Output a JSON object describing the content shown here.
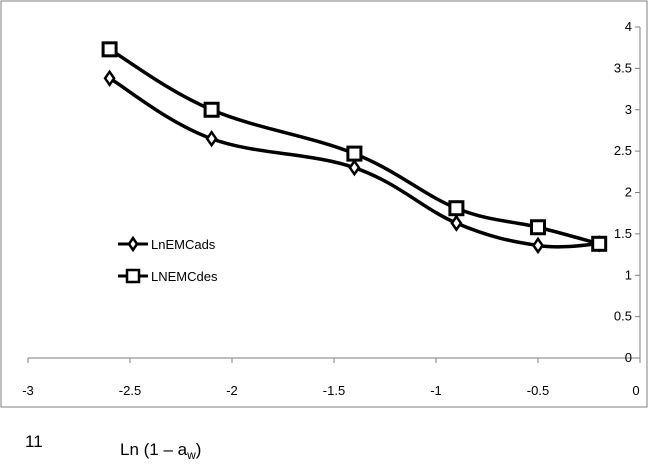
{
  "chart_data": {
    "type": "line",
    "xlim": [
      -3,
      0
    ],
    "ylim": [
      0,
      4
    ],
    "x_ticks": [
      "-3",
      "-2.5",
      "-2",
      "-1.5",
      "-1",
      "-0.5",
      "0"
    ],
    "y_ticks": [
      "0",
      "0.5",
      "1",
      "1.5",
      "2",
      "2.5",
      "3",
      "3.5",
      "4"
    ],
    "legend_position": "left",
    "grid": false,
    "series": [
      {
        "name": "LnEMCads",
        "marker": "diamond",
        "color": "#000000",
        "x": [
          -2.6,
          -2.1,
          -1.4,
          -0.9,
          -0.5,
          -0.2
        ],
        "y": [
          3.38,
          2.65,
          2.3,
          1.63,
          1.36,
          1.38
        ]
      },
      {
        "name": "LNEMCdes",
        "marker": "square",
        "color": "#000000",
        "x": [
          -2.6,
          -2.1,
          -1.4,
          -0.9,
          -0.5,
          -0.2
        ],
        "y": [
          3.73,
          3.0,
          2.47,
          1.81,
          1.58,
          1.38
        ]
      }
    ]
  },
  "caption": {
    "number": "11",
    "label_main": "Ln (1 – a",
    "label_sub": "w",
    "label_end": ")"
  }
}
